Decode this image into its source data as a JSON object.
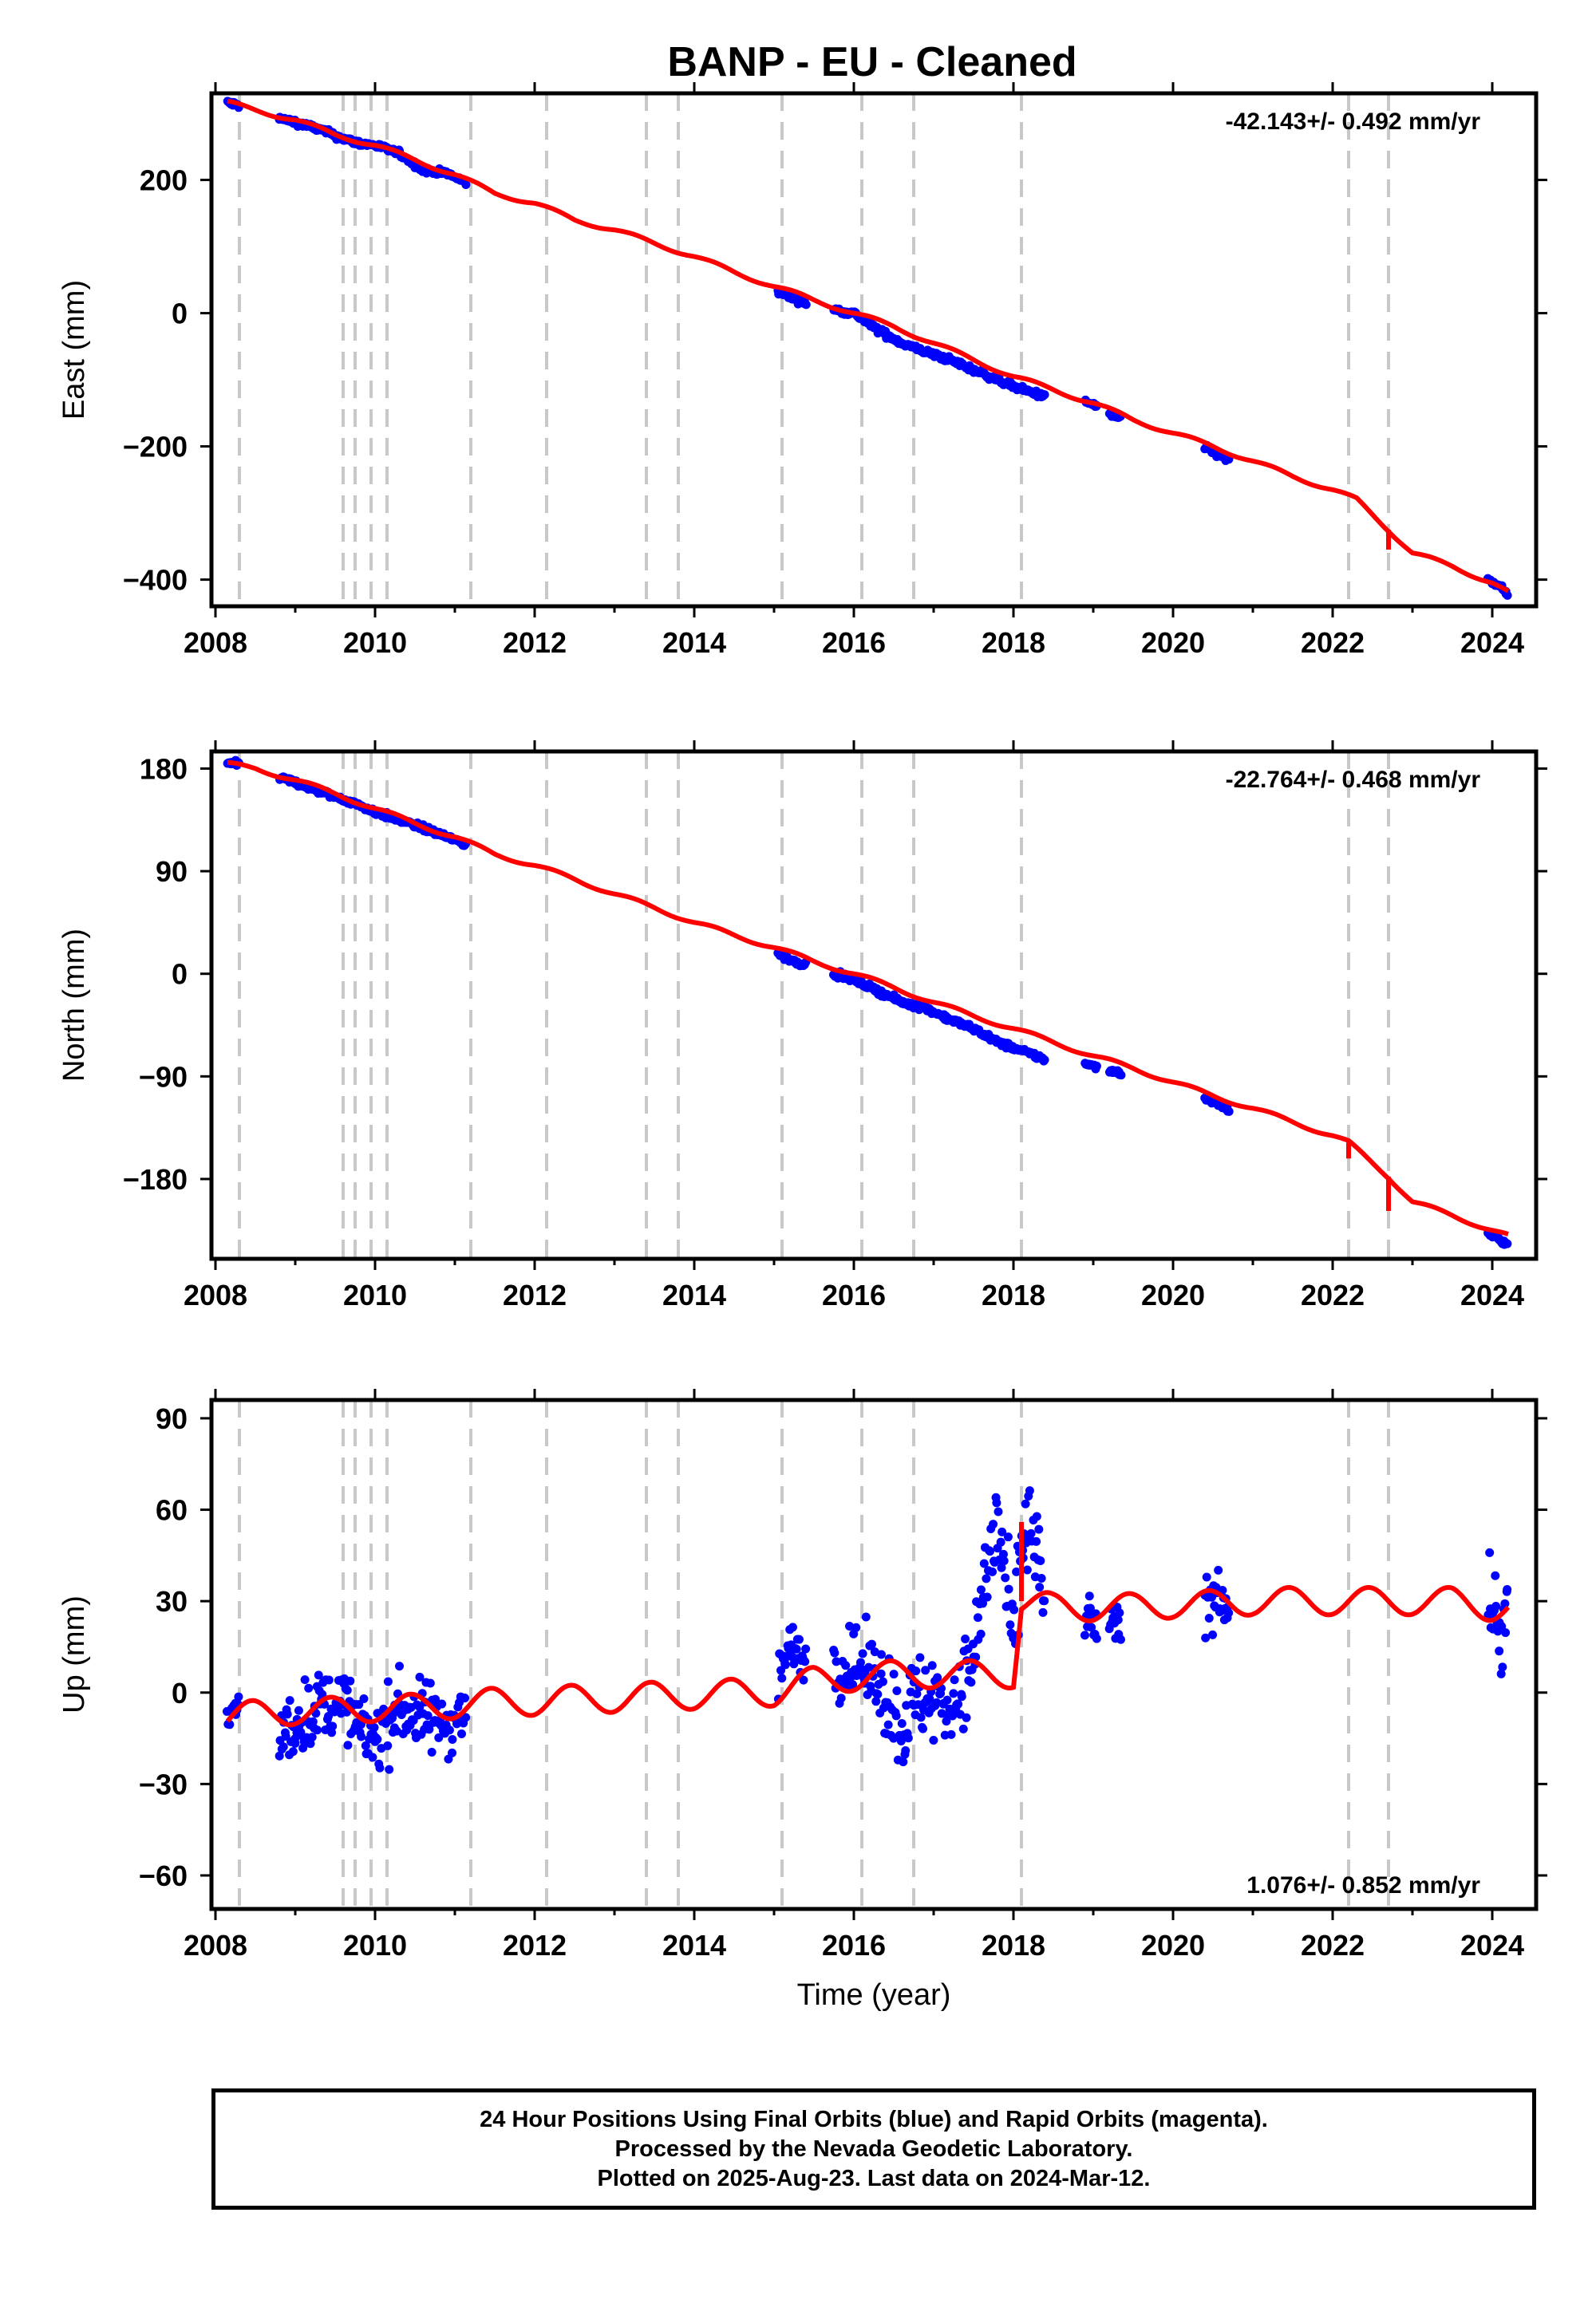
{
  "title": "BANP  - EU - Cleaned",
  "colors": {
    "final_orbits": "#0000ff",
    "model": "#ff0000",
    "offset_line": "#c8c8c8",
    "frame": "#000000"
  },
  "footer": {
    "line1": "24 Hour Positions Using Final Orbits (blue) and Rapid Orbits (magenta).",
    "line2": "Processed by the Nevada Geodetic Laboratory.",
    "line3": "Plotted on 2025-Aug-23. Last data on 2024-Mar-12."
  },
  "chart_data": [
    {
      "type": "scatter",
      "ylabel": "East (mm)",
      "xlabel": "",
      "xlim": [
        2007.95,
        2024.55
      ],
      "ylim": [
        -440,
        330
      ],
      "xticks": [
        2008,
        2010,
        2012,
        2014,
        2016,
        2018,
        2020,
        2022,
        2024
      ],
      "yticks": [
        -400,
        -200,
        0,
        200
      ],
      "rate_label": "-42.143+/- 0.492 mm/yr",
      "rate_position": "top-right",
      "offset_lines": [
        2008.3,
        2009.6,
        2009.75,
        2009.95,
        2010.15,
        2011.2,
        2012.15,
        2013.4,
        2013.8,
        2015.1,
        2016.1,
        2016.75,
        2018.1,
        2022.2,
        2022.7
      ],
      "data_segments": [
        [
          2008.15,
          2008.3
        ],
        [
          2008.8,
          2011.15
        ],
        [
          2015.05,
          2015.4
        ],
        [
          2015.75,
          2018.4
        ],
        [
          2018.9,
          2019.05
        ],
        [
          2019.2,
          2019.35
        ],
        [
          2020.4,
          2020.7
        ],
        [
          2023.95,
          2024.2
        ]
      ],
      "model_jumps": [
        [
          2022.7,
          -30
        ]
      ],
      "series": [
        {
          "name": "Final Orbits",
          "x": [
            2008.15,
            2008.3,
            2008.8,
            2009.0,
            2009.3,
            2009.6,
            2009.8,
            2010.0,
            2010.3,
            2010.6,
            2010.9,
            2011.15,
            2015.05,
            2015.2,
            2015.4,
            2015.75,
            2016.0,
            2016.3,
            2016.6,
            2016.9,
            2017.2,
            2017.5,
            2017.8,
            2018.0,
            2018.2,
            2018.4,
            2018.95,
            2019.05,
            2019.25,
            2019.35,
            2020.45,
            2020.6,
            2020.7,
            2024.0,
            2024.1,
            2024.2
          ],
          "y": [
            316,
            312,
            292,
            287,
            276,
            262,
            255,
            252,
            240,
            215,
            210,
            195,
            33,
            25,
            15,
            5,
            0,
            -25,
            -45,
            -58,
            -70,
            -85,
            -100,
            -110,
            -118,
            -125,
            -135,
            -140,
            -155,
            -158,
            -205,
            -215,
            -220,
            -405,
            -410,
            -425
          ]
        },
        {
          "name": "Model",
          "x": [
            2008.15,
            2008.5,
            2009.0,
            2009.5,
            2010.0,
            2010.5,
            2011.0,
            2011.5,
            2012.0,
            2012.5,
            2013.0,
            2013.5,
            2014.0,
            2014.5,
            2015.0,
            2015.5,
            2016.0,
            2016.5,
            2017.0,
            2017.5,
            2018.0,
            2018.5,
            2019.0,
            2019.5,
            2020.0,
            2020.5,
            2021.0,
            2021.5,
            2022.0,
            2022.3,
            2022.7,
            2023.0,
            2023.5,
            2024.0,
            2024.2
          ],
          "y": [
            316,
            305,
            290,
            268,
            252,
            230,
            208,
            180,
            165,
            140,
            125,
            105,
            85,
            62,
            40,
            20,
            0,
            -20,
            -45,
            -70,
            -95,
            -115,
            -135,
            -160,
            -180,
            -200,
            -222,
            -245,
            -265,
            -280,
            -325,
            -360,
            -380,
            -405,
            -420
          ]
        }
      ]
    },
    {
      "type": "scatter",
      "ylabel": "North (mm)",
      "xlabel": "",
      "xlim": [
        2007.95,
        2024.55
      ],
      "ylim": [
        -250,
        195
      ],
      "xticks": [
        2008,
        2010,
        2012,
        2014,
        2016,
        2018,
        2020,
        2022,
        2024
      ],
      "yticks": [
        -180,
        -90,
        0,
        90,
        180
      ],
      "rate_label": "-22.764+/- 0.468 mm/yr",
      "rate_position": "top-right",
      "offset_lines": [
        2008.3,
        2009.6,
        2009.75,
        2009.95,
        2010.15,
        2011.2,
        2012.15,
        2013.4,
        2013.8,
        2015.1,
        2016.1,
        2016.75,
        2018.1,
        2022.2,
        2022.7
      ],
      "data_segments": [
        [
          2008.15,
          2008.3
        ],
        [
          2008.8,
          2011.15
        ],
        [
          2015.05,
          2015.4
        ],
        [
          2015.75,
          2018.4
        ],
        [
          2018.9,
          2019.05
        ],
        [
          2019.2,
          2019.35
        ],
        [
          2020.4,
          2020.7
        ],
        [
          2023.95,
          2024.2
        ]
      ],
      "model_jumps": [
        [
          2022.2,
          -14
        ],
        [
          2022.7,
          -30
        ]
      ],
      "series": [
        {
          "name": "Final Orbits",
          "x": [
            2008.15,
            2008.3,
            2008.8,
            2009.0,
            2009.3,
            2009.6,
            2009.8,
            2010.0,
            2010.3,
            2010.6,
            2010.9,
            2011.15,
            2015.05,
            2015.2,
            2015.4,
            2015.75,
            2016.0,
            2016.3,
            2016.6,
            2016.9,
            2017.2,
            2017.5,
            2017.8,
            2018.0,
            2018.2,
            2018.4,
            2018.95,
            2019.05,
            2019.25,
            2019.35,
            2020.45,
            2020.6,
            2020.7,
            2024.0,
            2024.1,
            2024.2
          ],
          "y": [
            186,
            183,
            172,
            168,
            160,
            153,
            148,
            142,
            135,
            128,
            120,
            113,
            18,
            12,
            8,
            0,
            -5,
            -15,
            -25,
            -30,
            -40,
            -48,
            -60,
            -65,
            -70,
            -75,
            -80,
            -82,
            -85,
            -87,
            -110,
            -115,
            -120,
            -230,
            -233,
            -238
          ]
        },
        {
          "name": "Model",
          "x": [
            2008.15,
            2008.5,
            2009.0,
            2009.5,
            2010.0,
            2010.5,
            2011.0,
            2011.5,
            2012.0,
            2012.5,
            2013.0,
            2013.5,
            2014.0,
            2014.5,
            2015.0,
            2015.5,
            2016.0,
            2016.5,
            2017.0,
            2017.5,
            2018.0,
            2018.5,
            2019.0,
            2019.5,
            2020.0,
            2020.5,
            2021.0,
            2021.5,
            2022.0,
            2022.2,
            2022.7,
            2023.0,
            2023.5,
            2024.0,
            2024.2
          ],
          "y": [
            184,
            180,
            170,
            158,
            145,
            132,
            120,
            105,
            95,
            83,
            70,
            58,
            45,
            34,
            23,
            11,
            0,
            -12,
            -25,
            -37,
            -48,
            -60,
            -72,
            -83,
            -95,
            -107,
            -118,
            -130,
            -142,
            -148,
            -178,
            -200,
            -212,
            -225,
            -230
          ]
        }
      ]
    },
    {
      "type": "scatter",
      "ylabel": "Up (mm)",
      "xlabel": "Time (year)",
      "xlim": [
        2007.95,
        2024.55
      ],
      "ylim": [
        -71,
        96
      ],
      "xticks": [
        2008,
        2010,
        2012,
        2014,
        2016,
        2018,
        2020,
        2022,
        2024
      ],
      "yticks": [
        -60,
        -30,
        0,
        30,
        60,
        90
      ],
      "rate_label": "1.076+/- 0.852 mm/yr",
      "rate_position": "bottom-right",
      "offset_lines": [
        2008.3,
        2009.6,
        2009.75,
        2009.95,
        2010.15,
        2011.2,
        2012.15,
        2013.4,
        2013.8,
        2015.1,
        2016.1,
        2016.75,
        2018.1,
        2022.2,
        2022.7
      ],
      "data_segments": [
        [
          2008.15,
          2008.3
        ],
        [
          2008.8,
          2011.15
        ],
        [
          2015.05,
          2015.4
        ],
        [
          2015.75,
          2018.4
        ],
        [
          2018.9,
          2019.05
        ],
        [
          2019.2,
          2019.35
        ],
        [
          2020.4,
          2020.7
        ],
        [
          2023.95,
          2024.2
        ]
      ],
      "model_jumps": [
        [
          2018.1,
          26
        ]
      ],
      "series": [
        {
          "name": "Final Orbits",
          "x": [
            2008.15,
            2008.3,
            2008.8,
            2009.0,
            2009.3,
            2009.6,
            2009.8,
            2010.0,
            2010.3,
            2010.6,
            2010.9,
            2011.15,
            2015.05,
            2015.2,
            2015.4,
            2015.75,
            2016.0,
            2016.3,
            2016.6,
            2016.9,
            2017.2,
            2017.5,
            2017.65,
            2017.8,
            2018.0,
            2018.15,
            2018.3,
            2018.4,
            2018.95,
            2019.05,
            2019.25,
            2019.35,
            2020.45,
            2020.6,
            2020.7,
            2024.0,
            2024.1,
            2024.2
          ],
          "y": [
            -8,
            -5,
            -15,
            -10,
            -5,
            -2,
            -12,
            -15,
            -5,
            -8,
            -10,
            -5,
            5,
            15,
            12,
            8,
            10,
            5,
            -10,
            0,
            -5,
            10,
            40,
            55,
            15,
            55,
            45,
            20,
            25,
            20,
            22,
            20,
            30,
            35,
            25,
            30,
            20,
            28
          ],
          "spread": [
            3,
            4,
            8,
            9,
            9,
            8,
            8,
            10,
            9,
            9,
            9,
            8,
            7,
            6,
            6,
            8,
            9,
            10,
            14,
            12,
            10,
            10,
            18,
            16,
            10,
            16,
            15,
            10,
            6,
            6,
            6,
            6,
            8,
            8,
            6,
            12,
            12,
            10
          ]
        },
        {
          "name": "Model",
          "x": [
            2008.15,
            2008.5,
            2009.0,
            2009.5,
            2010.0,
            2010.5,
            2011.0,
            2011.5,
            2012.0,
            2012.5,
            2013.0,
            2013.5,
            2014.0,
            2014.5,
            2015.0,
            2015.5,
            2016.0,
            2016.5,
            2017.0,
            2017.5,
            2018.0,
            2018.1,
            2018.5,
            2019.0,
            2019.5,
            2020.0,
            2020.5,
            2021.0,
            2021.5,
            2022.0,
            2022.5,
            2023.0,
            2023.5,
            2024.0,
            2024.2
          ],
          "y": [
            -8,
            -7,
            -6,
            -6,
            -5,
            -5,
            -4,
            -3,
            -3,
            -2,
            -2,
            -1,
            -1,
            0,
            0,
            4,
            5,
            6,
            6,
            6,
            6,
            30,
            28,
            28,
            28,
            29,
            29,
            30,
            30,
            30,
            30,
            30,
            30,
            28,
            28
          ]
        }
      ]
    }
  ]
}
